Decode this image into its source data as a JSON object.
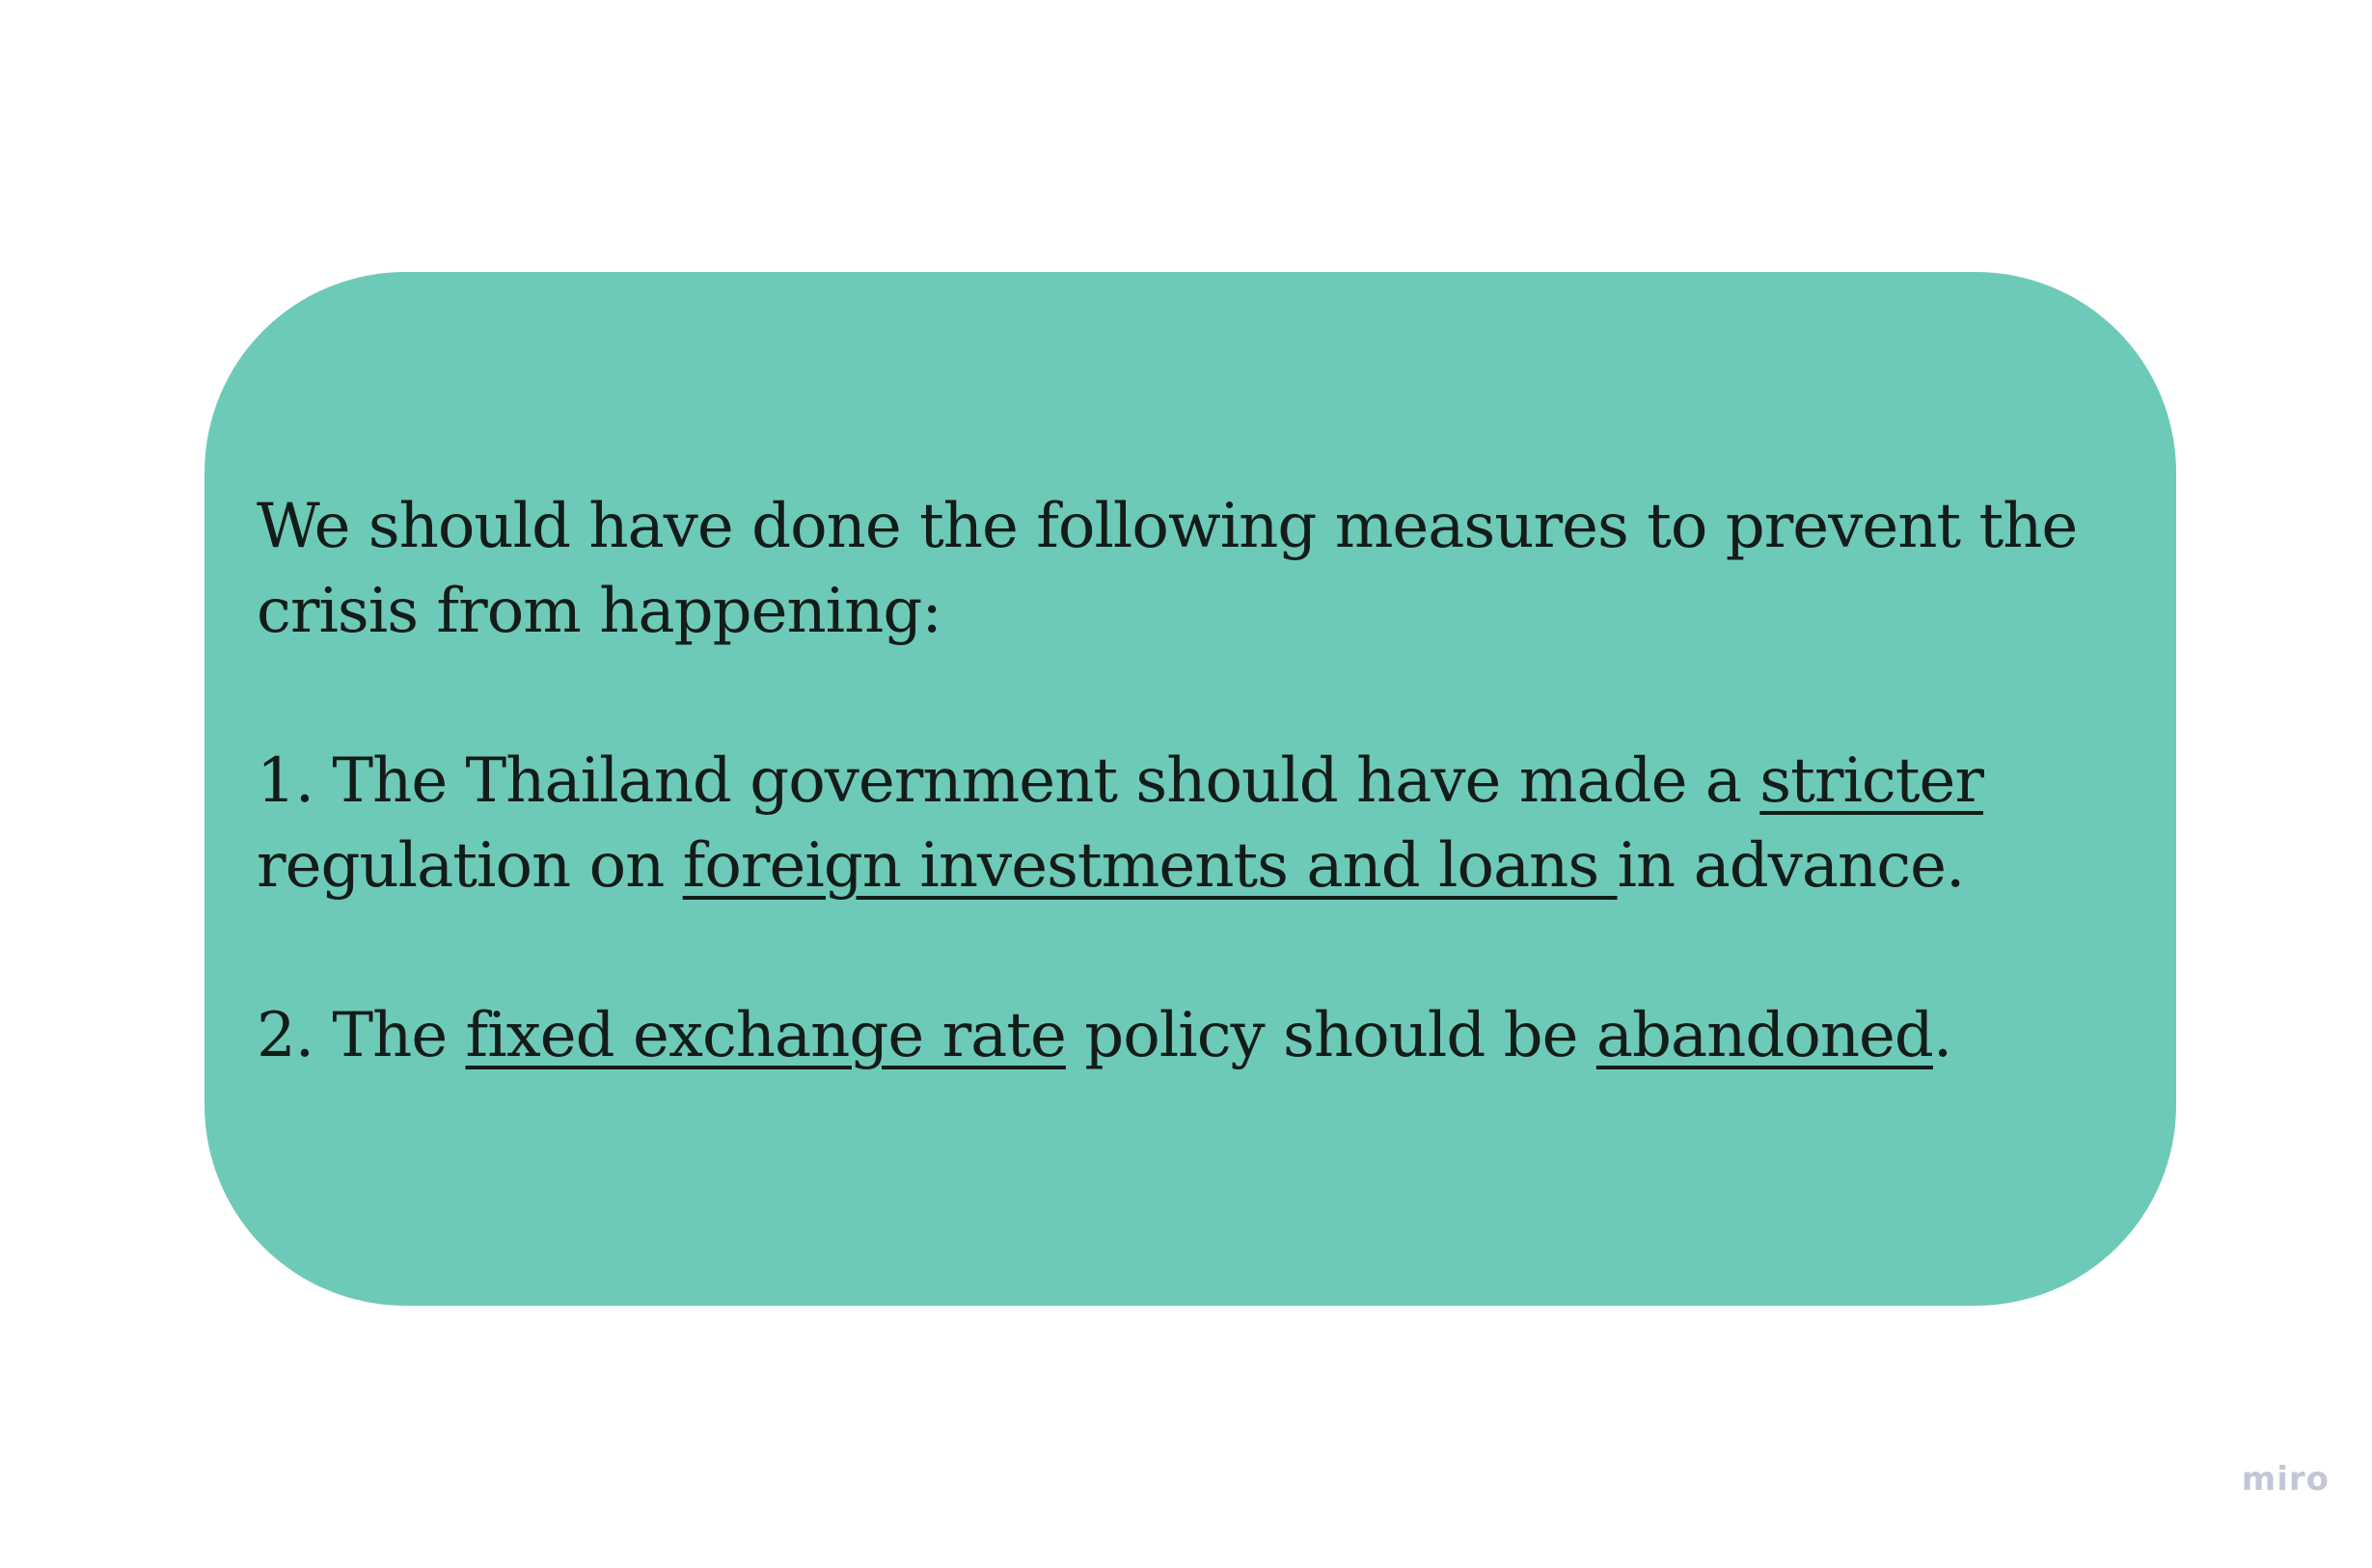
{
  "card": {
    "color": "#6ecab8",
    "intro": "We should have done the following measures to prevent the crisis from happening:",
    "item1": {
      "part1": "1. The Thailand government should have made a ",
      "link1": "stricter",
      "part2": " regulation on ",
      "link2": "foreign investments and loans ",
      "part3": "in advance."
    },
    "item2": {
      "part1": "2. The ",
      "link1": "fixed exchange rate",
      "part2": " policy should be ",
      "link2": "abandoned",
      "part3": "."
    }
  },
  "watermark": {
    "text": "miro"
  }
}
